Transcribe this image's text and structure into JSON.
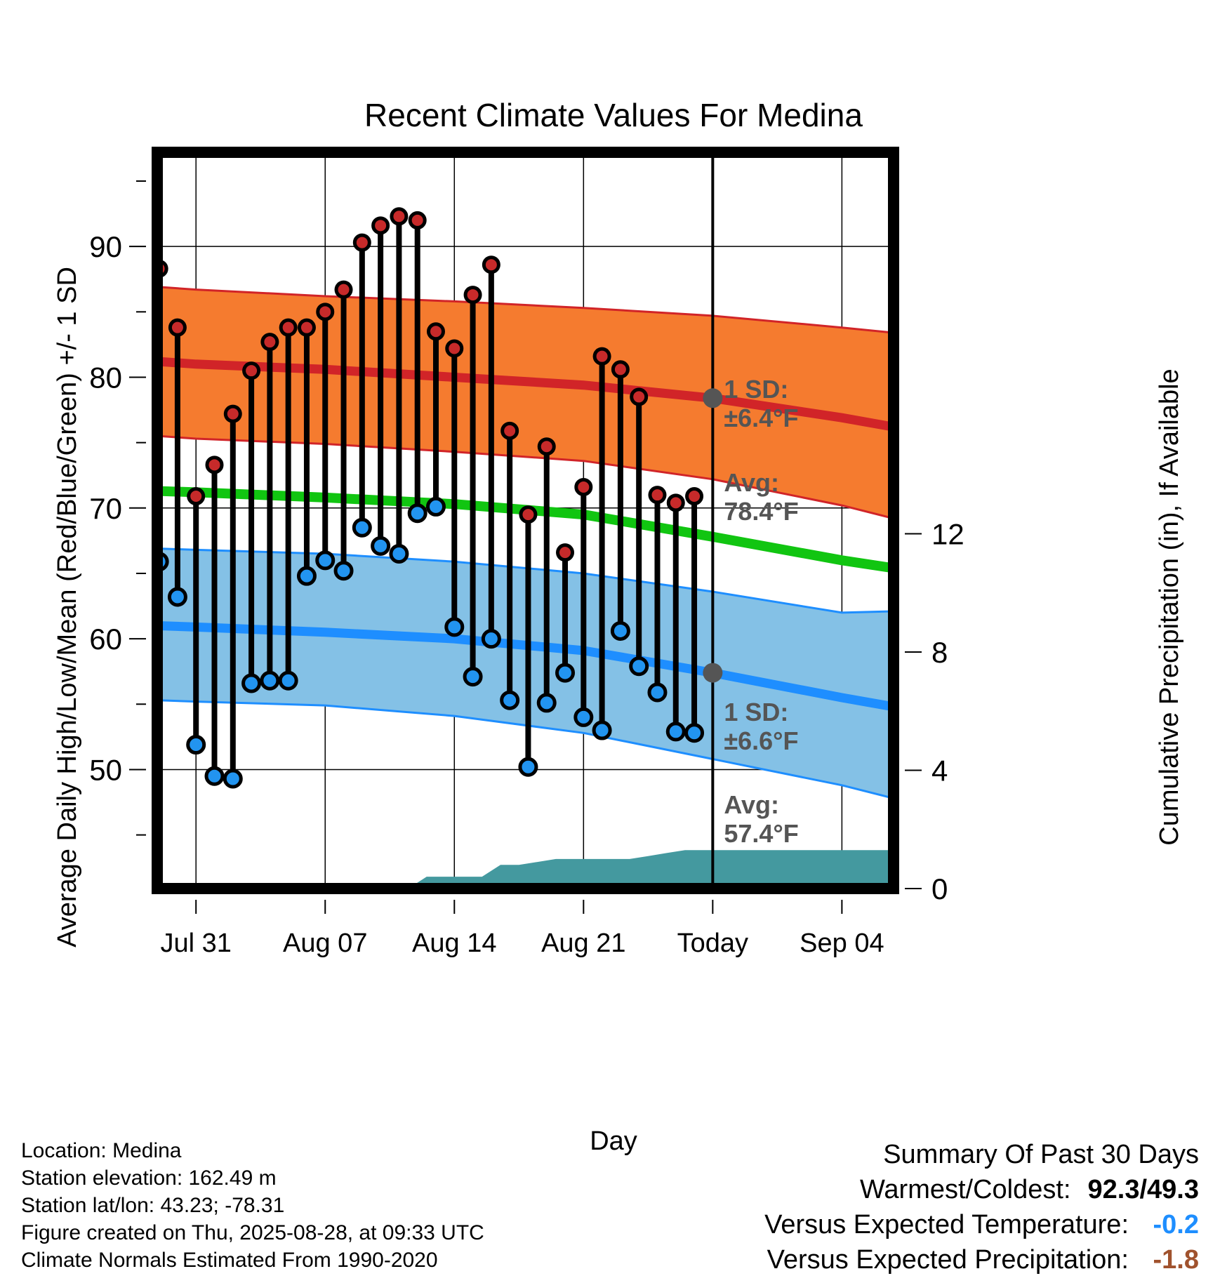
{
  "title": "Recent Climate Values For Medina",
  "chart_data": {
    "type": "line",
    "title": "Recent Climate Values For Medina",
    "xlabel": "Day",
    "ylabel_left": "Average Daily High/Low/Mean (Red/Blue/Green) +/- 1 SD",
    "ylabel_right": "Cumulative Precipitation (in), If Available",
    "x_ticks": [
      "Jul 31",
      "Aug 07",
      "Aug 14",
      "Aug 21",
      "Today",
      "Sep 04"
    ],
    "x_tick_day": [
      0,
      7,
      14,
      21,
      28,
      35
    ],
    "x_range": [
      -2.1,
      37.8
    ],
    "y_left_ticks": [
      "50",
      "60",
      "70",
      "80",
      "90"
    ],
    "y_left_range": [
      40.9,
      97.2
    ],
    "y_right_ticks": [
      "0",
      "4",
      "8",
      "12"
    ],
    "y_right_range": [
      0,
      24.9
    ],
    "observed": {
      "days": [
        -2,
        -1,
        0,
        1,
        2,
        3,
        4,
        5,
        6,
        7,
        8,
        9,
        10,
        11,
        12,
        13,
        14,
        15,
        16,
        17,
        18,
        19,
        20,
        21,
        22,
        23,
        24,
        25,
        26,
        27
      ],
      "high": [
        88.3,
        83.8,
        70.9,
        73.3,
        77.2,
        80.5,
        82.7,
        83.8,
        83.8,
        85.0,
        86.7,
        90.3,
        91.6,
        92.3,
        92.0,
        83.5,
        82.2,
        86.3,
        88.6,
        75.9,
        69.5,
        74.7,
        66.6,
        71.6,
        81.6,
        80.6,
        78.5,
        71.0,
        70.4,
        70.9
      ],
      "low": [
        65.9,
        63.2,
        51.9,
        49.5,
        49.3,
        56.6,
        56.8,
        56.8,
        64.8,
        66.0,
        65.2,
        68.5,
        67.1,
        66.5,
        69.6,
        70.1,
        60.9,
        57.1,
        60.0,
        55.3,
        50.2,
        55.1,
        57.4,
        54.0,
        53.0,
        60.6,
        57.9,
        55.9,
        52.9,
        52.8
      ]
    },
    "normals": {
      "days": [
        -2,
        0,
        7,
        14,
        21,
        28,
        35,
        37.8
      ],
      "avg_high": [
        81.2,
        81.0,
        80.6,
        80.0,
        79.4,
        78.4,
        76.9,
        76.2
      ],
      "high_plus_sd": [
        86.9,
        86.7,
        86.2,
        85.8,
        85.3,
        84.7,
        83.8,
        83.4
      ],
      "high_minus_sd": [
        75.5,
        75.3,
        74.9,
        74.3,
        73.6,
        72.2,
        70.2,
        69.2
      ],
      "mean": [
        71.3,
        71.2,
        70.8,
        70.3,
        69.5,
        67.8,
        66.0,
        65.4
      ],
      "avg_low": [
        61.0,
        60.9,
        60.5,
        60.0,
        59.1,
        57.4,
        55.5,
        54.8
      ],
      "low_plus_sd": [
        66.9,
        66.8,
        66.5,
        65.9,
        65.0,
        63.6,
        62.0,
        62.1
      ],
      "low_minus_sd": [
        55.3,
        55.2,
        54.9,
        54.1,
        52.8,
        50.8,
        48.8,
        47.8
      ]
    },
    "precip_cumulative": {
      "days": [
        11.5,
        12.5,
        15.5,
        16.5,
        17.5,
        18.5,
        19.5,
        20.5,
        21.5,
        22.5,
        23.5,
        24.5,
        25.5,
        26.5,
        27.5,
        28,
        37.8
      ],
      "values": [
        0.0,
        0.4,
        0.4,
        0.8,
        0.8,
        0.9,
        1.0,
        1.0,
        1.0,
        1.0,
        1.0,
        1.1,
        1.2,
        1.3,
        1.3,
        1.3,
        1.3
      ]
    },
    "annotations": {
      "high_sd": [
        "1 SD:",
        "±6.4°F"
      ],
      "high_avg": [
        "Avg:",
        "78.4°F"
      ],
      "low_sd": [
        "1 SD:",
        "±6.6°F"
      ],
      "low_avg": [
        "Avg:",
        "57.4°F"
      ],
      "window": [
        "30",
        "Days"
      ]
    },
    "colors": {
      "high_band": "#f57b2f",
      "high_line": "#d12428",
      "mean_line": "#11c511",
      "low_band": "#84c1e6",
      "low_line": "#1e8eff",
      "precip": "#44999f",
      "annotation": "#555555",
      "high_marker": "#c72a2a",
      "low_marker": "#2294f0"
    }
  },
  "info": {
    "location": "Location: Medina",
    "elevation": "Station elevation: 162.49 m",
    "latlon": "Station lat/lon: 43.23; -78.31",
    "created": "Figure created on Thu, 2025-08-28, at 09:33 UTC",
    "normals": "Climate Normals Estimated From 1990-2020"
  },
  "summary": {
    "heading": "Summary Of Past 30 Days",
    "warm_cold_label": "Warmest/Coldest:",
    "warm_cold_value": "92.3/49.3",
    "temp_label": "Versus Expected Temperature:",
    "temp_value": "-0.2",
    "temp_color": "#1e8eff",
    "precip_label": "Versus Expected Precipitation:",
    "precip_value": "-1.8",
    "precip_color": "#a0522d"
  }
}
